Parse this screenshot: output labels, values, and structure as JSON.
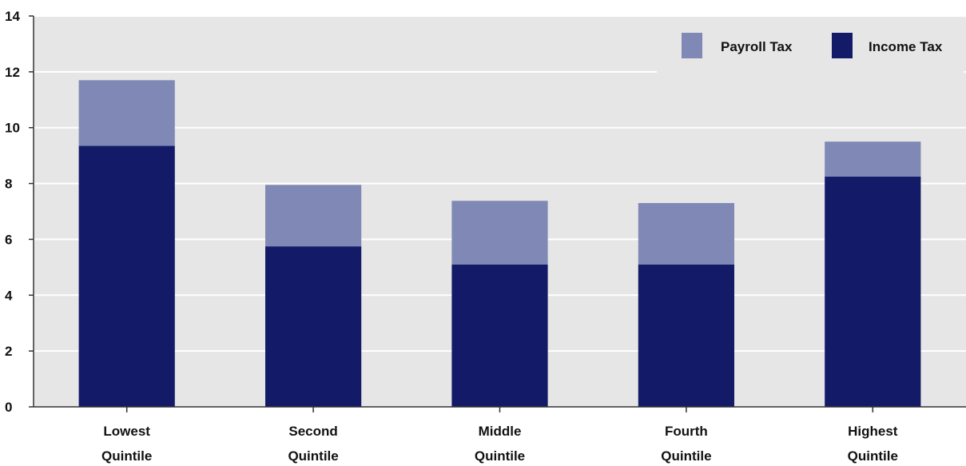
{
  "chart_data": {
    "type": "bar",
    "stacked": true,
    "categories": [
      [
        "Lowest",
        "Quintile"
      ],
      [
        "Second",
        "Quintile"
      ],
      [
        "Middle",
        "Quintile"
      ],
      [
        "Fourth",
        "Quintile"
      ],
      [
        "Highest",
        "Quintile"
      ]
    ],
    "series": [
      {
        "name": "Income Tax",
        "color": "#131b68",
        "values": [
          9.35,
          5.75,
          5.1,
          5.1,
          8.25
        ]
      },
      {
        "name": "Payroll Tax",
        "color": "#8088b6",
        "values": [
          2.35,
          2.2,
          2.28,
          2.2,
          1.25
        ]
      }
    ],
    "ylim": [
      0,
      14
    ],
    "yticks": [
      0,
      2,
      4,
      6,
      8,
      10,
      12,
      14
    ],
    "grid": true,
    "legend_position": "top-right",
    "legend_order": [
      "Payroll Tax",
      "Income Tax"
    ],
    "plot_background": "#e6e6e6",
    "title": "",
    "xlabel": "",
    "ylabel": ""
  }
}
